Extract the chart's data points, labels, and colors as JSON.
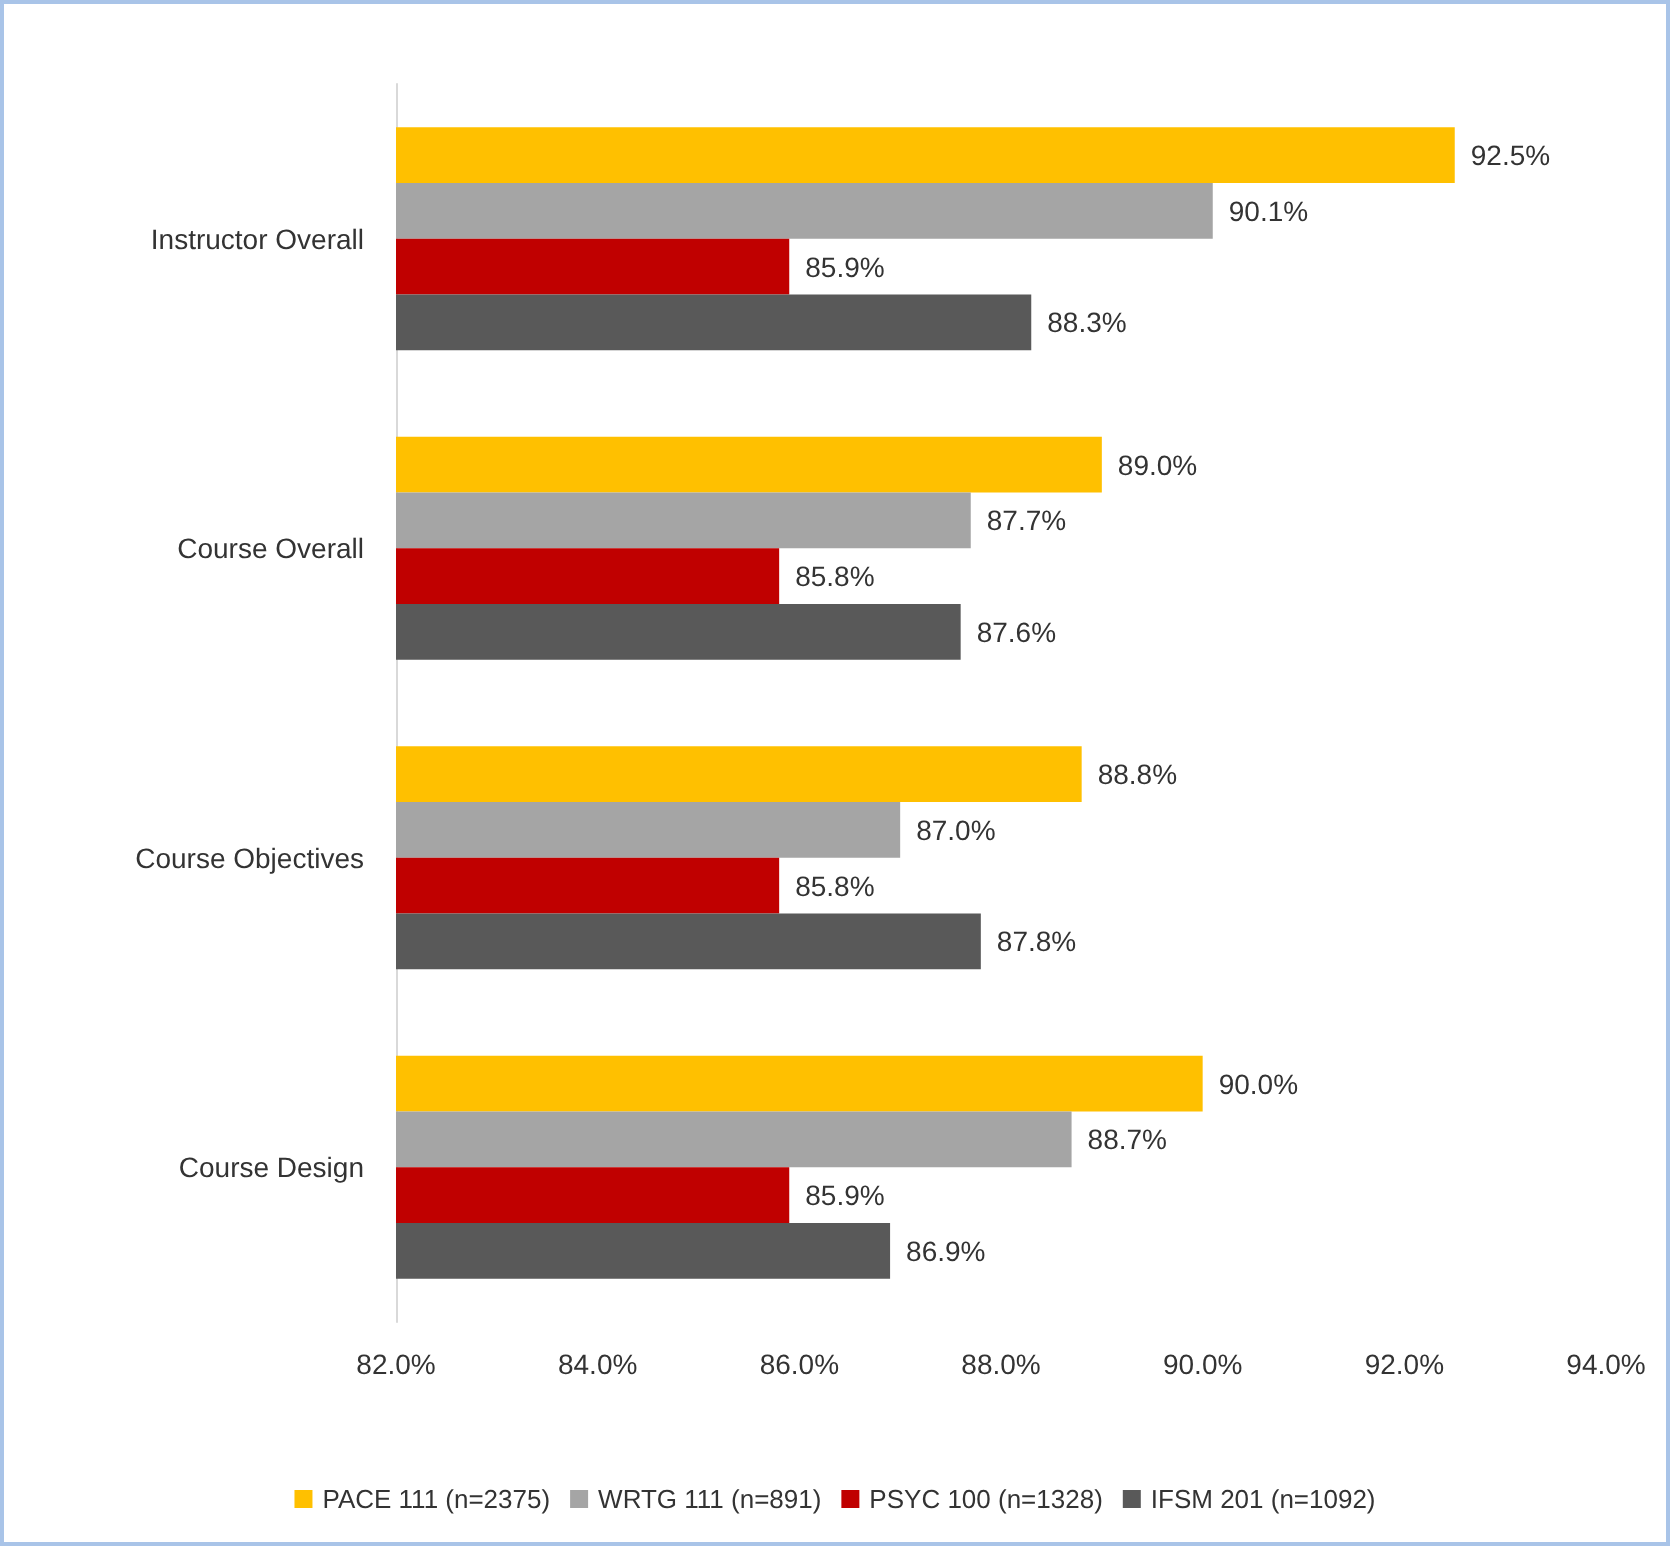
{
  "chart_data": {
    "type": "bar",
    "orientation": "horizontal",
    "categories": [
      "Instructor Overall",
      "Course Overall",
      "Course Objectives",
      "Course Design"
    ],
    "series": [
      {
        "name": "PACE 111 (n=2375)",
        "color": "#ffc000",
        "values": [
          92.5,
          89.0,
          88.8,
          90.0
        ],
        "value_labels": [
          "92.5%",
          "89.0%",
          "88.8%",
          "90.0%"
        ]
      },
      {
        "name": "WRTG 111 (n=891)",
        "color": "#a5a5a5",
        "values": [
          90.1,
          87.7,
          87.0,
          88.7
        ],
        "value_labels": [
          "90.1%",
          "87.7%",
          "87.0%",
          "88.7%"
        ]
      },
      {
        "name": "PSYC 100 (n=1328)",
        "color": "#c00000",
        "values": [
          85.9,
          85.8,
          85.8,
          85.9
        ],
        "value_labels": [
          "85.9%",
          "85.8%",
          "85.8%",
          "85.9%"
        ]
      },
      {
        "name": "IFSM 201 (n=1092)",
        "color": "#595959",
        "values": [
          88.3,
          87.6,
          87.8,
          86.9
        ],
        "value_labels": [
          "88.3%",
          "87.6%",
          "87.8%",
          "86.9%"
        ]
      }
    ],
    "xlim": [
      82,
      94
    ],
    "xticks": [
      {
        "value": 82,
        "label": "82.0%"
      },
      {
        "value": 84,
        "label": "84.0%"
      },
      {
        "value": 86,
        "label": "86.0%"
      },
      {
        "value": 88,
        "label": "88.0%"
      },
      {
        "value": 90,
        "label": "90.0%"
      },
      {
        "value": 92,
        "label": "92.0%"
      },
      {
        "value": 94,
        "label": "94.0%"
      }
    ],
    "grid": false,
    "legend": "bottom"
  }
}
